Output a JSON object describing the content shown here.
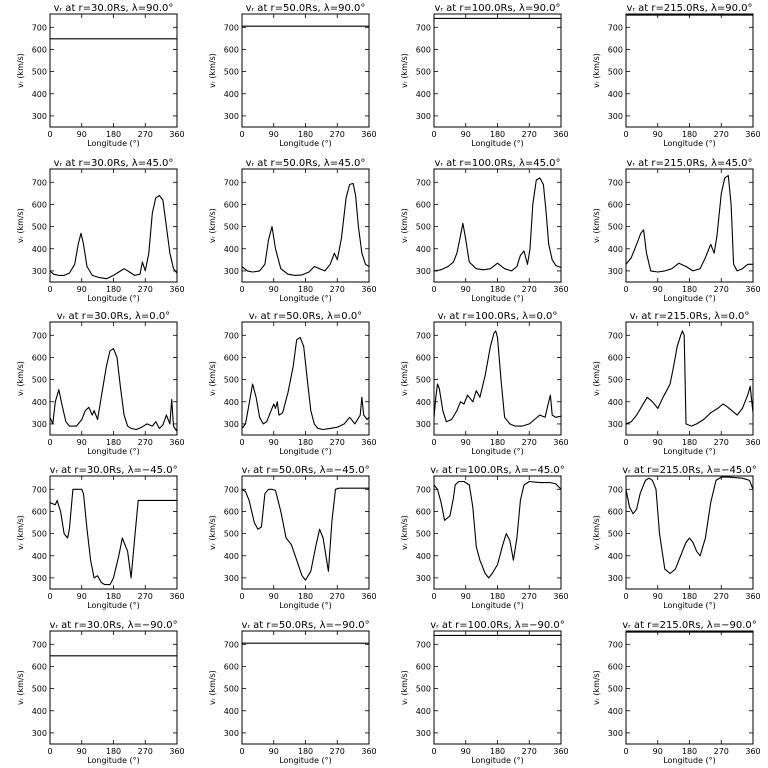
{
  "chart_data": {
    "type": "line",
    "layout": "5x4 grid of panels (rows: latitude, columns: radius)",
    "xlabel": "Longitude (°)",
    "ylabel": "vᵣ (km/s)",
    "xlim": [
      0,
      360
    ],
    "ylim": [
      250,
      760
    ],
    "xticks": [
      0,
      90,
      180,
      270,
      360
    ],
    "yticks": [
      300,
      400,
      500,
      600,
      700
    ],
    "panels": [
      {
        "title": "vᵣ at r=30.0Rs, λ=90.0°",
        "x": [
          0,
          360
        ],
        "y": [
          648,
          648
        ]
      },
      {
        "title": "vᵣ at r=50.0Rs, λ=90.0°",
        "x": [
          0,
          360
        ],
        "y": [
          705,
          705
        ]
      },
      {
        "title": "vᵣ at r=100.0Rs, λ=90.0°",
        "x": [
          0,
          360
        ],
        "y": [
          740,
          740
        ]
      },
      {
        "title": "vᵣ at r=215.0Rs, λ=90.0°",
        "x": [
          0,
          360
        ],
        "y": [
          755,
          755
        ]
      },
      {
        "title": "vᵣ at r=30.0Rs, λ=45.0°",
        "x": [
          0,
          10,
          25,
          40,
          55,
          70,
          80,
          88,
          95,
          105,
          120,
          140,
          160,
          180,
          200,
          210,
          225,
          240,
          255,
          262,
          270,
          280,
          290,
          300,
          310,
          320,
          330,
          340,
          350,
          360
        ],
        "y": [
          300,
          285,
          280,
          280,
          290,
          330,
          420,
          470,
          420,
          320,
          280,
          270,
          265,
          280,
          300,
          310,
          295,
          280,
          285,
          340,
          300,
          380,
          560,
          630,
          640,
          620,
          500,
          380,
          310,
          290
        ]
      },
      {
        "title": "vᵣ at r=50.0Rs, λ=45.0°",
        "x": [
          0,
          15,
          30,
          50,
          65,
          75,
          85,
          95,
          110,
          130,
          150,
          170,
          190,
          205,
          220,
          235,
          250,
          262,
          270,
          282,
          295,
          305,
          315,
          322,
          330,
          340,
          350,
          360
        ],
        "y": [
          320,
          300,
          295,
          300,
          330,
          440,
          500,
          400,
          310,
          285,
          280,
          282,
          295,
          320,
          310,
          300,
          330,
          380,
          350,
          450,
          630,
          690,
          695,
          640,
          500,
          380,
          330,
          320
        ]
      },
      {
        "title": "vᵣ at r=100.0Rs, λ=45.0°",
        "x": [
          0,
          20,
          40,
          55,
          65,
          75,
          82,
          90,
          100,
          120,
          140,
          160,
          180,
          200,
          220,
          235,
          245,
          255,
          265,
          272,
          280,
          290,
          300,
          310,
          318,
          325,
          335,
          345,
          360
        ],
        "y": [
          300,
          305,
          320,
          340,
          380,
          460,
          515,
          440,
          340,
          310,
          305,
          310,
          335,
          310,
          300,
          320,
          370,
          390,
          330,
          400,
          600,
          710,
          720,
          690,
          560,
          420,
          350,
          325,
          315
        ]
      },
      {
        "title": "vᵣ at r=215.0Rs, λ=45.0°",
        "x": [
          0,
          15,
          30,
          42,
          50,
          58,
          70,
          90,
          110,
          130,
          150,
          170,
          190,
          210,
          225,
          240,
          250,
          258,
          270,
          280,
          290,
          298,
          305,
          315,
          330,
          345,
          360
        ],
        "y": [
          330,
          360,
          420,
          470,
          485,
          380,
          300,
          295,
          300,
          310,
          335,
          320,
          300,
          310,
          360,
          420,
          380,
          460,
          650,
          720,
          730,
          600,
          330,
          300,
          310,
          330,
          330
        ]
      },
      {
        "title": "vᵣ at r=30.0Rs, λ=0.0°",
        "x": [
          0,
          8,
          15,
          25,
          35,
          45,
          55,
          75,
          90,
          100,
          110,
          120,
          125,
          135,
          145,
          160,
          170,
          180,
          190,
          200,
          210,
          220,
          230,
          245,
          260,
          275,
          290,
          300,
          310,
          320,
          330,
          340,
          345,
          350,
          358,
          360
        ],
        "y": [
          330,
          300,
          400,
          455,
          380,
          310,
          290,
          290,
          320,
          360,
          375,
          340,
          360,
          320,
          420,
          560,
          630,
          640,
          600,
          460,
          340,
          290,
          280,
          275,
          285,
          300,
          290,
          310,
          280,
          295,
          340,
          300,
          410,
          290,
          270,
          280
        ]
      },
      {
        "title": "vᵣ at r=50.0Rs, λ=0.0°",
        "x": [
          0,
          10,
          20,
          30,
          40,
          50,
          60,
          70,
          80,
          90,
          95,
          100,
          105,
          115,
          130,
          145,
          155,
          165,
          175,
          185,
          195,
          205,
          215,
          230,
          250,
          270,
          290,
          305,
          320,
          335,
          340,
          345,
          355,
          360
        ],
        "y": [
          280,
          300,
          390,
          480,
          420,
          330,
          300,
          310,
          350,
          390,
          370,
          400,
          340,
          350,
          440,
          560,
          680,
          690,
          650,
          500,
          360,
          300,
          280,
          275,
          280,
          285,
          300,
          330,
          300,
          340,
          420,
          340,
          320,
          330
        ]
      },
      {
        "title": "vᵣ at r=100.0Rs, λ=0.0°",
        "x": [
          0,
          5,
          10,
          15,
          25,
          35,
          50,
          65,
          75,
          85,
          95,
          110,
          120,
          130,
          145,
          160,
          170,
          175,
          180,
          190,
          200,
          215,
          230,
          250,
          270,
          285,
          300,
          315,
          325,
          330,
          335,
          345,
          360
        ],
        "y": [
          330,
          420,
          480,
          460,
          360,
          310,
          320,
          360,
          400,
          390,
          430,
          400,
          450,
          420,
          520,
          650,
          710,
          720,
          690,
          500,
          330,
          300,
          290,
          290,
          300,
          320,
          340,
          330,
          400,
          430,
          340,
          330,
          335
        ]
      },
      {
        "title": "vᵣ at r=215.0Rs, λ=0.0°",
        "x": [
          0,
          15,
          30,
          45,
          60,
          75,
          90,
          105,
          115,
          125,
          135,
          145,
          155,
          160,
          165,
          170,
          185,
          200,
          220,
          240,
          260,
          275,
          285,
          300,
          315,
          330,
          345,
          352,
          360
        ],
        "y": [
          300,
          310,
          340,
          380,
          420,
          400,
          370,
          420,
          450,
          480,
          560,
          650,
          700,
          720,
          700,
          300,
          290,
          300,
          320,
          350,
          370,
          390,
          380,
          360,
          340,
          370,
          430,
          470,
          350
        ]
      },
      {
        "title": "vᵣ at r=30.0Rs, λ=−45.0°",
        "x": [
          0,
          15,
          20,
          30,
          40,
          50,
          55,
          65,
          75,
          90,
          95,
          105,
          115,
          125,
          135,
          145,
          155,
          170,
          180,
          195,
          205,
          220,
          230,
          240,
          250,
          260,
          270,
          360
        ],
        "y": [
          640,
          630,
          650,
          600,
          500,
          480,
          520,
          700,
          700,
          700,
          680,
          520,
          380,
          300,
          310,
          280,
          270,
          270,
          300,
          400,
          480,
          420,
          300,
          480,
          650,
          650,
          650,
          650
        ]
      },
      {
        "title": "vᵣ at r=50.0Rs, λ=−45.0°",
        "x": [
          0,
          10,
          20,
          35,
          45,
          55,
          65,
          75,
          85,
          95,
          110,
          125,
          140,
          155,
          170,
          180,
          195,
          210,
          220,
          230,
          245,
          255,
          265,
          275,
          285,
          360
        ],
        "y": [
          700,
          690,
          650,
          550,
          520,
          530,
          680,
          700,
          700,
          695,
          600,
          480,
          450,
          380,
          310,
          290,
          330,
          450,
          520,
          480,
          330,
          560,
          700,
          705,
          705,
          705
        ]
      },
      {
        "title": "vᵣ at r=100.0Rs, λ=−45.0°",
        "x": [
          0,
          10,
          20,
          30,
          45,
          55,
          60,
          70,
          85,
          100,
          110,
          120,
          130,
          145,
          155,
          165,
          180,
          195,
          205,
          215,
          225,
          235,
          245,
          255,
          270,
          300,
          330,
          345,
          360
        ],
        "y": [
          720,
          700,
          640,
          560,
          580,
          660,
          720,
          735,
          735,
          720,
          620,
          440,
          380,
          320,
          300,
          320,
          360,
          450,
          500,
          470,
          380,
          480,
          650,
          720,
          735,
          730,
          730,
          725,
          700
        ]
      },
      {
        "title": "vᵣ at r=215.0Rs, λ=−45.0°",
        "x": [
          0,
          10,
          20,
          30,
          40,
          55,
          65,
          75,
          85,
          95,
          110,
          125,
          140,
          150,
          160,
          170,
          180,
          190,
          200,
          210,
          225,
          240,
          255,
          270,
          290,
          330,
          350,
          360
        ],
        "y": [
          700,
          620,
          590,
          610,
          680,
          740,
          750,
          740,
          700,
          500,
          340,
          320,
          340,
          380,
          420,
          460,
          480,
          460,
          420,
          400,
          480,
          640,
          740,
          755,
          755,
          750,
          740,
          700
        ]
      },
      {
        "title": "vᵣ at r=30.0Rs, λ=−90.0°",
        "x": [
          0,
          360
        ],
        "y": [
          648,
          648
        ]
      },
      {
        "title": "vᵣ at r=50.0Rs, λ=−90.0°",
        "x": [
          0,
          360
        ],
        "y": [
          705,
          705
        ]
      },
      {
        "title": "vᵣ at r=100.0Rs, λ=−90.0°",
        "x": [
          0,
          360
        ],
        "y": [
          740,
          740
        ]
      },
      {
        "title": "vᵣ at r=215.0Rs, λ=−90.0°",
        "x": [
          0,
          360
        ],
        "y": [
          755,
          755
        ]
      }
    ]
  }
}
